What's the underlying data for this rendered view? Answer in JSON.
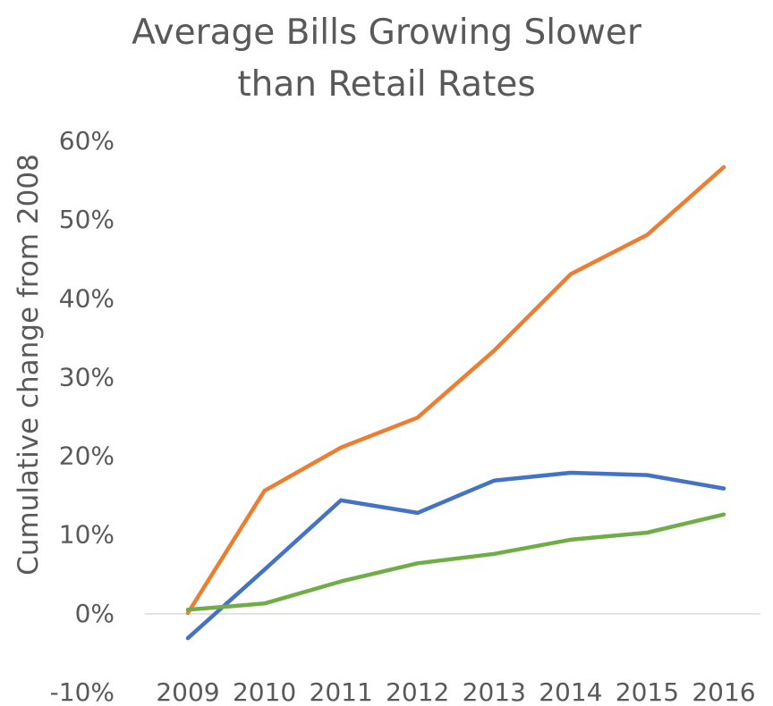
{
  "chart_data": {
    "type": "line",
    "title": "Average Bills Growing Slower than Retail Rates",
    "title_lines": [
      "Average Bills Growing Slower",
      "than Retail Rates"
    ],
    "ylabel": "Cumulative change from 2008",
    "xlabel": "",
    "categories": [
      "2009",
      "2010",
      "2011",
      "2012",
      "2013",
      "2014",
      "2015",
      "2016"
    ],
    "ylim": [
      -10,
      60
    ],
    "y_ticks": [
      60,
      50,
      40,
      30,
      20,
      10,
      0,
      -10
    ],
    "y_tick_labels": [
      "60%",
      "50%",
      "40%",
      "30%",
      "20%",
      "10%",
      "0%",
      "-10%"
    ],
    "grid": false,
    "legend": "none",
    "series": [
      {
        "color": "#ED7D31",
        "values": [
          0.0,
          15.5,
          21.0,
          24.8,
          33.3,
          43.0,
          48.0,
          56.6
        ]
      },
      {
        "color": "#4472C4",
        "values": [
          -3.2,
          5.5,
          14.3,
          12.7,
          16.8,
          17.8,
          17.5,
          15.8
        ]
      },
      {
        "color": "#70AD47",
        "values": [
          0.4,
          1.2,
          4.0,
          6.3,
          7.5,
          9.3,
          10.2,
          12.5
        ]
      }
    ],
    "colors": {
      "text": "#595959",
      "axis_line": "#D9D9D9"
    }
  }
}
